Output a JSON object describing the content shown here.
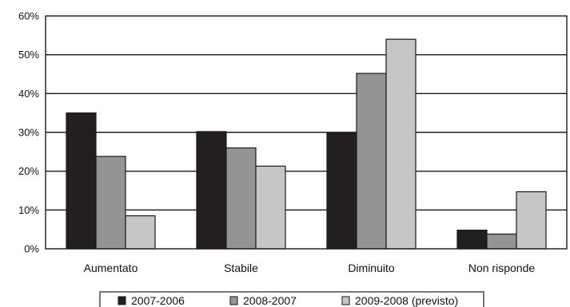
{
  "chart_data": {
    "type": "bar",
    "title": "",
    "xlabel": "",
    "ylabel": "",
    "categories": [
      "Aumentato",
      "Stabile",
      "Diminuito",
      "Non risponde"
    ],
    "series": [
      {
        "name": "2007-2006",
        "values": [
          35,
          30.2,
          29.8,
          4.8
        ],
        "color": "#231f20"
      },
      {
        "name": "2008-2007",
        "values": [
          23.8,
          26,
          45.2,
          3.8
        ],
        "color": "#949494"
      },
      {
        "name": "2009-2008 (previsto)",
        "values": [
          8.5,
          21.3,
          54,
          14.7
        ],
        "color": "#c6c6c6"
      }
    ],
    "ylim": [
      0,
      60
    ],
    "yticks": [
      0,
      10,
      20,
      30,
      40,
      50,
      60
    ],
    "ytick_format": "%",
    "grid": true,
    "legend_position": "bottom"
  }
}
